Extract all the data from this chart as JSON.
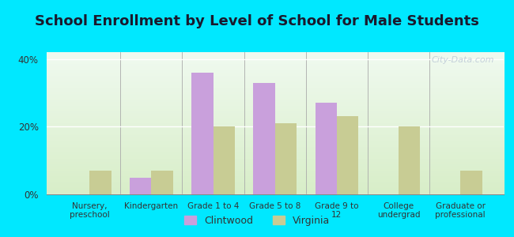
{
  "title": "School Enrollment by Level of School for Male Students",
  "categories": [
    "Nursery,\npreschool",
    "Kindergarten",
    "Grade 1 to 4",
    "Grade 5 to 8",
    "Grade 9 to\n12",
    "College\nundergrad",
    "Graduate or\nprofessional"
  ],
  "clintwood": [
    0,
    5,
    36,
    33,
    27,
    0,
    0
  ],
  "virginia": [
    7,
    7,
    20,
    21,
    23,
    20,
    7
  ],
  "clintwood_color": "#c9a0dc",
  "virginia_color": "#c8cc94",
  "background_outer": "#00e8ff",
  "background_inner_top": "#f0faf0",
  "background_inner_bottom": "#d8eec8",
  "ylim": [
    0,
    42
  ],
  "yticks": [
    0,
    20,
    40
  ],
  "ytick_labels": [
    "0%",
    "20%",
    "40%"
  ],
  "bar_width": 0.35,
  "title_fontsize": 13,
  "title_color": "#1a1a2e",
  "watermark_text": "City-Data.com",
  "legend_labels": [
    "Clintwood",
    "Virginia"
  ],
  "separator_color": "#aaaaaa",
  "grid_color": "#c8ddc8"
}
